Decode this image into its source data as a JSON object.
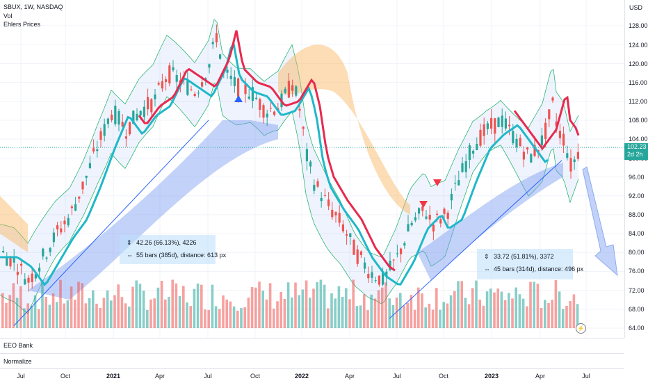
{
  "header": {
    "symbol_line": "SBUX, 1W, NASDAQ",
    "indicator_vol": "Vol",
    "indicator_ehlers": "Ehlers Prices"
  },
  "price_axis": {
    "currency": "USD",
    "labels": [
      "128.00",
      "124.00",
      "120.00",
      "116.00",
      "112.00",
      "108.00",
      "104.00",
      "100.00",
      "96.00",
      "92.00",
      "88.00",
      "84.00",
      "80.00",
      "76.00",
      "72.00",
      "68.00",
      "64.00"
    ],
    "last_price": "102.23",
    "countdown": "2d 2h"
  },
  "time_axis": {
    "labels": [
      {
        "text": "Jul",
        "bold": false
      },
      {
        "text": "Oct",
        "bold": false
      },
      {
        "text": "2021",
        "bold": true
      },
      {
        "text": "Apr",
        "bold": false
      },
      {
        "text": "Jul",
        "bold": false
      },
      {
        "text": "Oct",
        "bold": false
      },
      {
        "text": "2022",
        "bold": true
      },
      {
        "text": "Apr",
        "bold": false
      },
      {
        "text": "Jul",
        "bold": false
      },
      {
        "text": "Oct",
        "bold": false
      },
      {
        "text": "2023",
        "bold": true
      },
      {
        "text": "Apr",
        "bold": false
      },
      {
        "text": "Jul",
        "bold": false
      }
    ]
  },
  "panes": {
    "eeo_label": "EEO Bank",
    "normalize_label": "Normalize"
  },
  "measure_1": {
    "line1": "42.26 (66.13%), 4226",
    "line2": "55 bars (385d), distance: 613 px"
  },
  "measure_2": {
    "line1": "33.72 (51.81%), 3372",
    "line2": "45 bars (314d), distance: 496 px"
  },
  "colors": {
    "up": "#26a69a",
    "down": "#ef5350",
    "ma_cyan": "#1fb8c9",
    "ma_red": "#e8294f",
    "band_blue": "#7b9cf0",
    "band_orange": "#f9b45c"
  },
  "icons": [
    "measure-price-icon",
    "measure-bars-icon",
    "lightning-icon",
    "down-arrow-icon",
    "triangle-up-marker",
    "triangle-down-marker"
  ]
}
